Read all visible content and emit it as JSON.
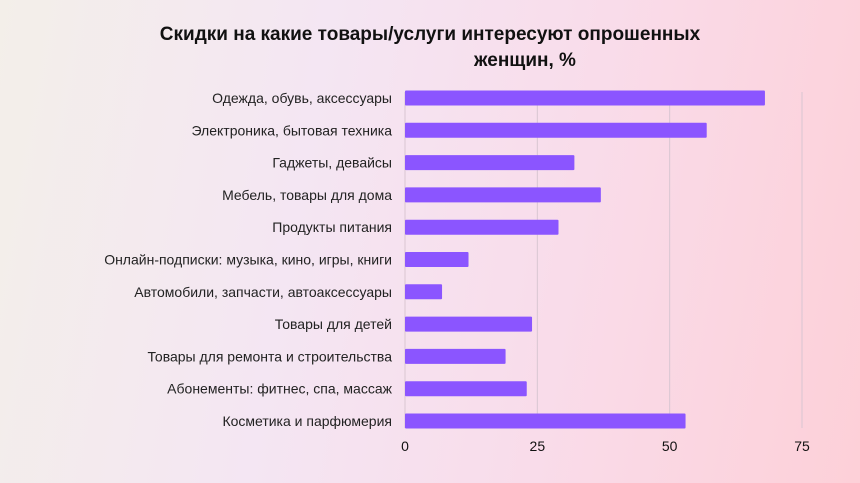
{
  "chart_data": {
    "type": "bar",
    "orientation": "horizontal",
    "title_line1": "Скидки на какие товары/услуги интересуют опрошенных",
    "title_line2": "женщин, %",
    "categories": [
      "Одежда, обувь, аксессуары",
      "Электроника, бытовая техника",
      "Гаджеты, девайсы",
      "Мебель, товары для дома",
      "Продукты питания",
      "Онлайн-подписки: музыка, кино, игры, книги",
      "Автомобили, запчасти, автоаксессуары",
      "Товары для детей",
      "Товары для ремонта и строительства",
      "Абонементы: фитнес, спа, массаж",
      "Косметика и парфюмерия"
    ],
    "values": [
      68,
      57,
      32,
      37,
      29,
      12,
      7,
      24,
      19,
      23,
      53
    ],
    "xlim": [
      0,
      75
    ],
    "xticks": [
      "0",
      "25",
      "50",
      "75"
    ],
    "grid": true,
    "bar_color": "#8b55ff",
    "grid_color": "#d9c6d2"
  }
}
